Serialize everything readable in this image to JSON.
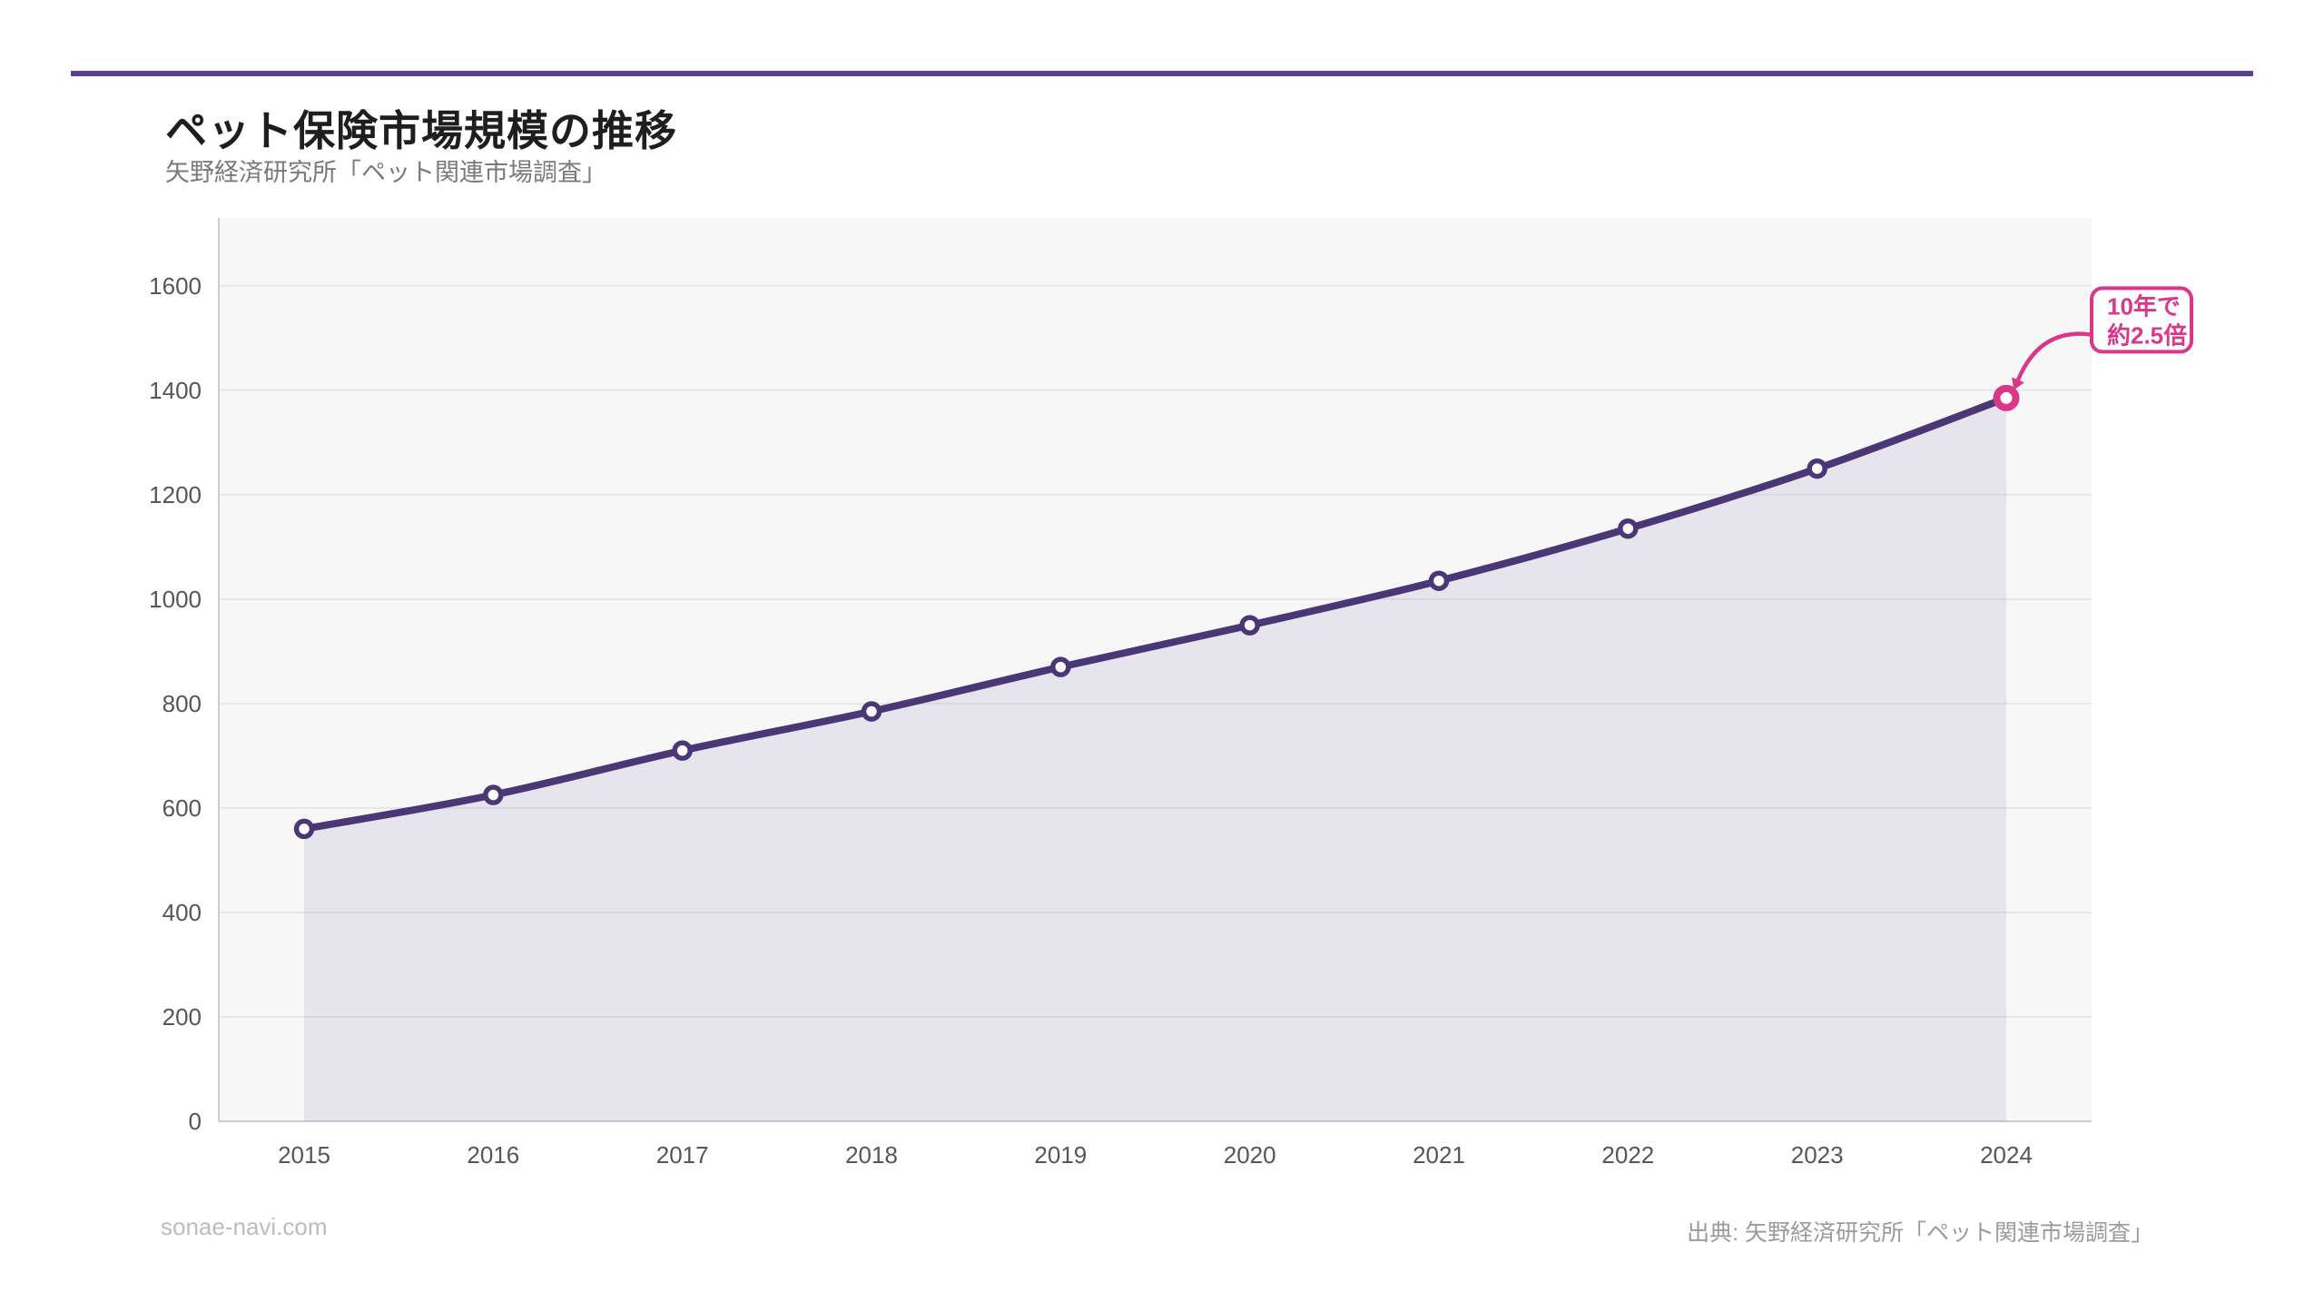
{
  "page": {
    "background": "#ffffff",
    "accent_bar_color": "#5a4190"
  },
  "header": {
    "title": "ペット保険市場規模の推移",
    "subtitle": "矢野経済研究所「ペット関連市場調査」"
  },
  "chart_data": {
    "type": "area",
    "title": "ペット保険市場規模の推移",
    "x": [
      2015,
      2016,
      2017,
      2018,
      2019,
      2020,
      2021,
      2022,
      2023,
      2024
    ],
    "series": [
      {
        "name": "ペット保険市場規模",
        "values": [
          560,
          625,
          710,
          785,
          870,
          950,
          1035,
          1135,
          1250,
          1385
        ]
      }
    ],
    "xlabel": "",
    "ylabel": "",
    "ylim": [
      0,
      1730
    ],
    "yticks": [
      0,
      200,
      400,
      600,
      800,
      1000,
      1200,
      1400,
      1600
    ],
    "grid": true,
    "legend": false,
    "annotation": {
      "lines": [
        "10年で",
        "約2.5倍"
      ],
      "target_year": 2024
    },
    "colors": {
      "line": "#4b3776",
      "area": "rgba(91,70,145,0.10)",
      "marker_fill": "#ffffff",
      "highlight": "#d9388a",
      "plot_bg": "#f7f7f7",
      "gridline": "#e7e7e7",
      "axis": "#cccccc",
      "tick_label": "#565656"
    }
  },
  "footer": {
    "watermark": "sonae-navi.com",
    "source": "出典: 矢野経済研究所「ペット関連市場調査」"
  }
}
